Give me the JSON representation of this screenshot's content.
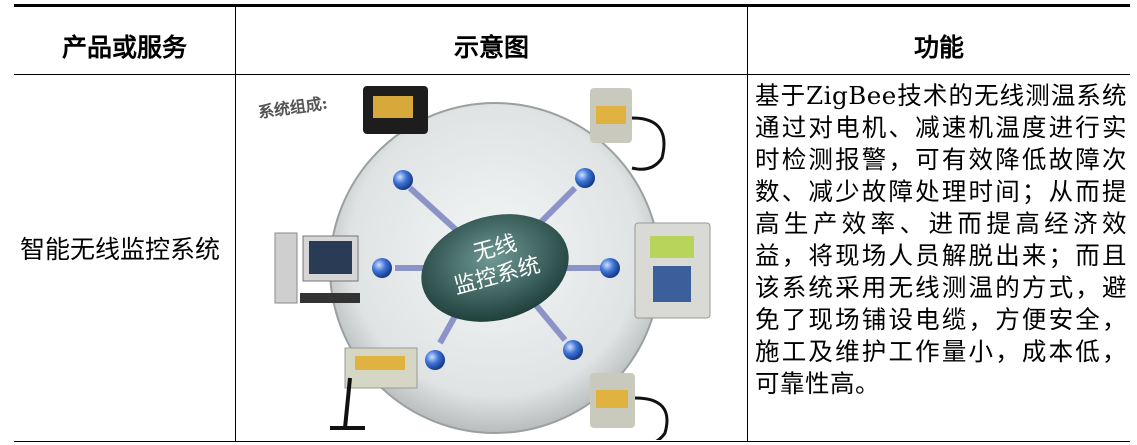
{
  "table": {
    "header": [
      "产品或服务",
      "示意图",
      "功能"
    ],
    "rows": [
      [
        "智能无线监控系统",
        {
          "caption": "系统组成:",
          "center": [
            "无线",
            "监控系统"
          ]
        },
        "基于ZigBee技术的无线测温系统通过对电机、减速机温度进行实时检测报警，可有效降低故障次数、减少故障处理时间；从而提高生产效率、进而提高经济效益，将现场人员解脱出来；而且该系统采用无线测温的方式，避免了现场铺设电缆，方便安全，施工及维护工作量小，成本低，可靠性高。"
      ]
    ]
  }
}
